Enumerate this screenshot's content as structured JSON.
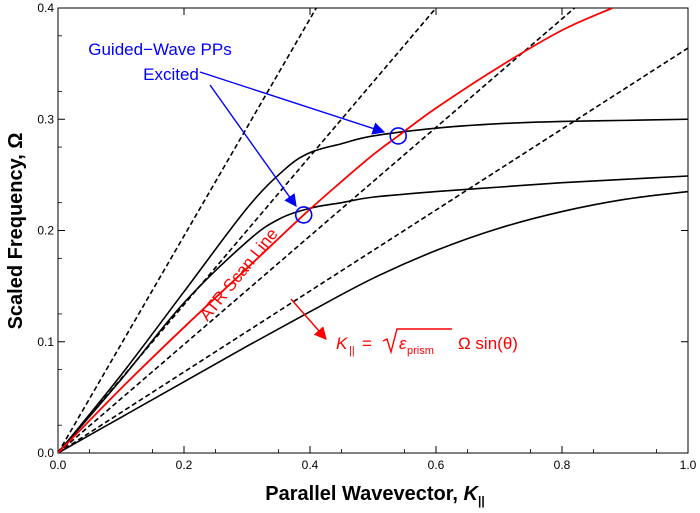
{
  "chart_data": {
    "type": "line",
    "title": "",
    "xlabel": "Parallel Wavevector, ",
    "xlabel_symbol": "K",
    "xlabel_subscript": "||",
    "ylabel": "Scaled Frequency, Ω",
    "xlim": [
      0,
      1.0
    ],
    "ylim": [
      0,
      0.4
    ],
    "xticks": [
      "0.0",
      "0.2",
      "0.4",
      "0.6",
      "0.8",
      "1.0"
    ],
    "yticks": [
      "0.0",
      "0.1",
      "0.2",
      "0.3",
      "0.4"
    ],
    "grid": false,
    "series": [
      {
        "style": "dashed",
        "color": "#000000",
        "x": [
          0,
          0.41
        ],
        "y": [
          0,
          0.4
        ]
      },
      {
        "style": "dashed",
        "color": "#000000",
        "x": [
          0,
          0.6
        ],
        "y": [
          0,
          0.4
        ]
      },
      {
        "style": "dashed",
        "color": "#000000",
        "x": [
          0,
          0.82
        ],
        "y": [
          0,
          0.4
        ]
      },
      {
        "style": "dashed",
        "color": "#000000",
        "x": [
          0,
          1.0
        ],
        "y": [
          0,
          0.364
        ]
      },
      {
        "style": "solid",
        "color": "#000000",
        "x": [
          0,
          0.1,
          0.2,
          0.3,
          0.36,
          0.4,
          0.45,
          0.5,
          0.6,
          0.7,
          0.8,
          0.9,
          1.0
        ],
        "y": [
          0,
          0.07,
          0.145,
          0.22,
          0.255,
          0.27,
          0.278,
          0.285,
          0.292,
          0.296,
          0.298,
          0.299,
          0.3
        ]
      },
      {
        "style": "solid",
        "color": "#000000",
        "x": [
          0,
          0.1,
          0.2,
          0.3,
          0.35,
          0.4,
          0.45,
          0.5,
          0.6,
          0.7,
          0.8,
          0.9,
          1.0
        ],
        "y": [
          0,
          0.066,
          0.135,
          0.19,
          0.21,
          0.22,
          0.225,
          0.23,
          0.235,
          0.239,
          0.243,
          0.246,
          0.249
        ]
      },
      {
        "style": "solid",
        "color": "#000000",
        "x": [
          0,
          0.1,
          0.2,
          0.3,
          0.4,
          0.5,
          0.6,
          0.7,
          0.8,
          0.9,
          1.0
        ],
        "y": [
          0,
          0.032,
          0.064,
          0.096,
          0.127,
          0.157,
          0.182,
          0.202,
          0.217,
          0.228,
          0.235
        ]
      },
      {
        "style": "solid",
        "color": "#ff0000",
        "x": [
          0,
          0.1,
          0.2,
          0.3,
          0.39,
          0.45,
          0.5,
          0.54,
          0.6,
          0.7,
          0.8,
          0.88
        ],
        "y": [
          0,
          0.058,
          0.113,
          0.166,
          0.214,
          0.244,
          0.268,
          0.285,
          0.31,
          0.347,
          0.38,
          0.4
        ]
      }
    ],
    "markers": [
      {
        "shape": "circle",
        "color": "#0000ff",
        "x": 0.39,
        "y": 0.214
      },
      {
        "shape": "circle",
        "color": "#0000ff",
        "x": 0.54,
        "y": 0.285
      }
    ],
    "annotations": {
      "guided_line1": "Guided−Wave PPs",
      "guided_line2": "Excited",
      "scan_line_label": "ATR Scan Line",
      "formula_lhs_symbol": "K",
      "formula_lhs_sub": "||",
      "formula_eq": "=",
      "formula_eps": "ε",
      "formula_eps_sub": "prism",
      "formula_rest": "Ω sin(θ)"
    },
    "colors": {
      "scan": "#ff0000",
      "markers": "#0000ff",
      "curves": "#000000"
    }
  }
}
